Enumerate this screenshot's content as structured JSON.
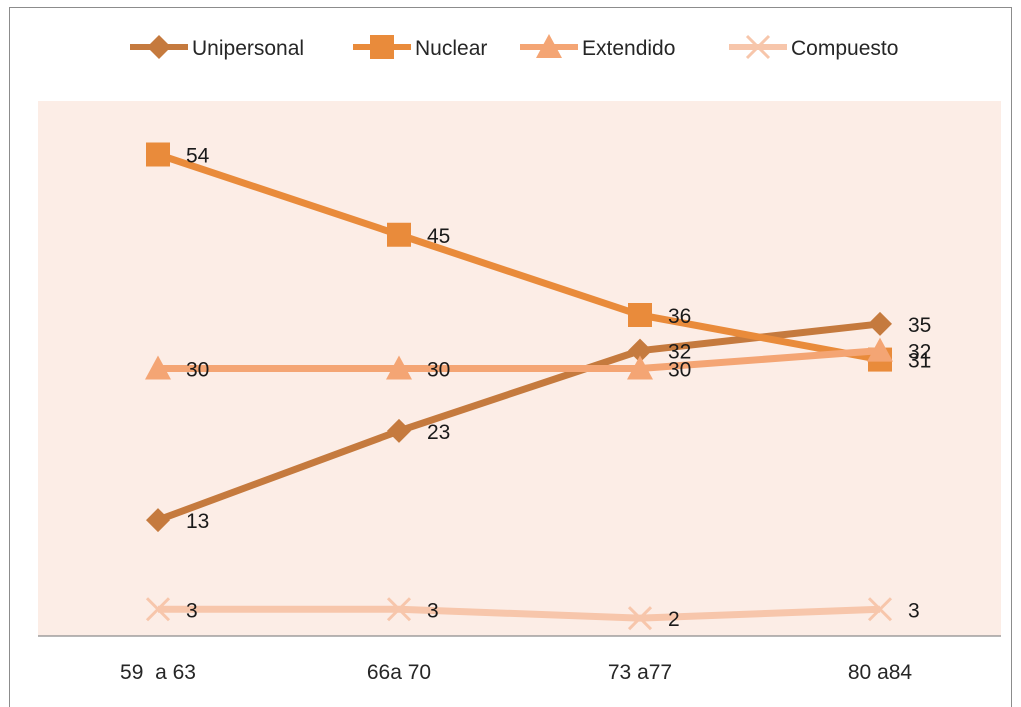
{
  "chart_data": {
    "type": "line",
    "categories": [
      "59  a 63",
      "66a 70",
      "73 a77",
      "80 a84"
    ],
    "ylim": [
      0,
      60
    ],
    "grid": false,
    "legend_position": "top",
    "plot_background": "#fcede6",
    "series": [
      {
        "name": "Unipersonal",
        "values": [
          13,
          23,
          32,
          35
        ],
        "color": "#c57a3e",
        "marker": "diamond"
      },
      {
        "name": "Nuclear",
        "values": [
          54,
          45,
          36,
          31
        ],
        "color": "#e98b3b",
        "marker": "square"
      },
      {
        "name": "Extendido",
        "values": [
          30,
          30,
          30,
          32
        ],
        "color": "#f4a574",
        "marker": "triangle"
      },
      {
        "name": "Compuesto",
        "values": [
          3,
          3,
          2,
          3
        ],
        "color": "#f7c6ab",
        "marker": "x"
      }
    ]
  }
}
